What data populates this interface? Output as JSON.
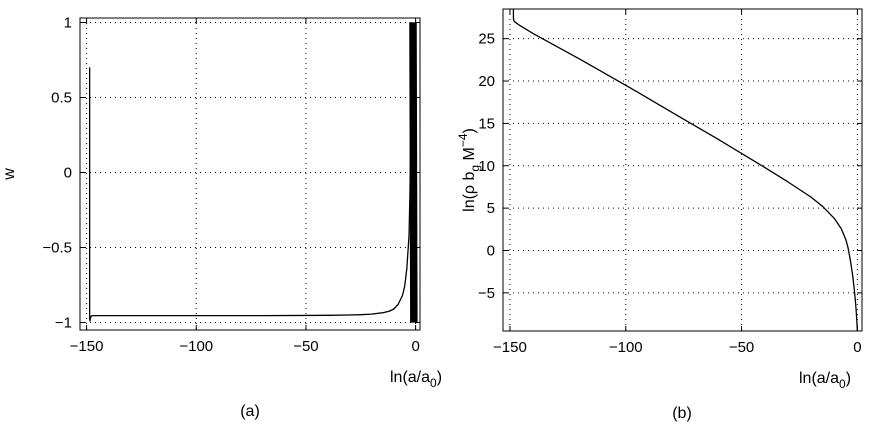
{
  "chart_data": [
    {
      "type": "line",
      "panel_label": "(a)",
      "title": "",
      "xlabel": "ln(a/a",
      "xlabel_sub": "0",
      "xlabel_tail": ")",
      "ylabel": "w",
      "xlim": [
        -153,
        2
      ],
      "ylim": [
        -1.05,
        1.03
      ],
      "xticks": [
        -150,
        -100,
        -50,
        0
      ],
      "xtick_labels": [
        "−150",
        "−100",
        "−50",
        "0"
      ],
      "yticks": [
        -1,
        -0.5,
        0,
        0.5,
        1
      ],
      "ytick_labels": [
        "−1",
        "−0.5",
        "0",
        "0.5",
        "1"
      ],
      "grid": true,
      "series": [
        {
          "x": [
            -148.6,
            -148.6,
            -148.45,
            -148.3,
            -148.1,
            -147.8,
            -147.3,
            -146.5,
            -145,
            -130,
            -110,
            -90,
            -70,
            -50,
            -40,
            -30,
            -25,
            -20,
            -15,
            -12,
            -10,
            -8,
            -6,
            -5,
            -4,
            -3,
            -2.6,
            -2.2,
            -2.0
          ],
          "y": [
            0.7,
            -0.97,
            -0.99,
            -0.975,
            -0.962,
            -0.957,
            -0.955,
            -0.954,
            -0.954,
            -0.954,
            -0.954,
            -0.954,
            -0.954,
            -0.953,
            -0.952,
            -0.95,
            -0.948,
            -0.944,
            -0.935,
            -0.925,
            -0.91,
            -0.88,
            -0.82,
            -0.76,
            -0.64,
            -0.42,
            -0.15,
            0.3,
            1.0
          ]
        },
        {
          "x": [
            -2.0,
            -1.6,
            -1.2,
            -0.8,
            -0.4,
            0
          ],
          "y": [
            1.0,
            -1.0,
            1.0,
            -1.0,
            1.0,
            -1.0
          ],
          "oscillating": true
        }
      ]
    },
    {
      "type": "line",
      "panel_label": "(b)",
      "title": "",
      "xlabel": "ln(a/a",
      "xlabel_sub": "0",
      "xlabel_tail": ")",
      "ylabel": "ln(ρ b",
      "ylabel_sub": "g",
      "ylabel_mid": " M",
      "ylabel_sup": "−4",
      "ylabel_tail": ")",
      "xlim": [
        -153,
        2
      ],
      "ylim": [
        -9.5,
        28.5
      ],
      "xticks": [
        -150,
        -100,
        -50,
        0
      ],
      "xtick_labels": [
        "−150",
        "−100",
        "−50",
        "0"
      ],
      "yticks": [
        -5,
        0,
        5,
        10,
        15,
        20,
        25
      ],
      "ytick_labels": [
        "−5",
        "0",
        "5",
        "10",
        "15",
        "20",
        "25"
      ],
      "grid": true,
      "series": [
        {
          "x": [
            -148.5,
            -148.5,
            -148.3,
            -148.0,
            -147.5,
            -146,
            -140,
            -120,
            -100,
            -80,
            -60,
            -40,
            -30,
            -20,
            -15,
            -10,
            -7,
            -5,
            -4,
            -3,
            -2,
            -1.5,
            -1,
            -0.6,
            -0.3,
            0
          ],
          "y": [
            28.5,
            27.4,
            27.1,
            27.0,
            26.9,
            26.6,
            25.6,
            22.6,
            19.5,
            16.3,
            13.1,
            9.8,
            8.1,
            6.3,
            5.2,
            3.8,
            2.6,
            1.3,
            0.3,
            -1.2,
            -3.0,
            -4.2,
            -5.5,
            -6.8,
            -8.0,
            -9.5
          ]
        }
      ]
    }
  ]
}
